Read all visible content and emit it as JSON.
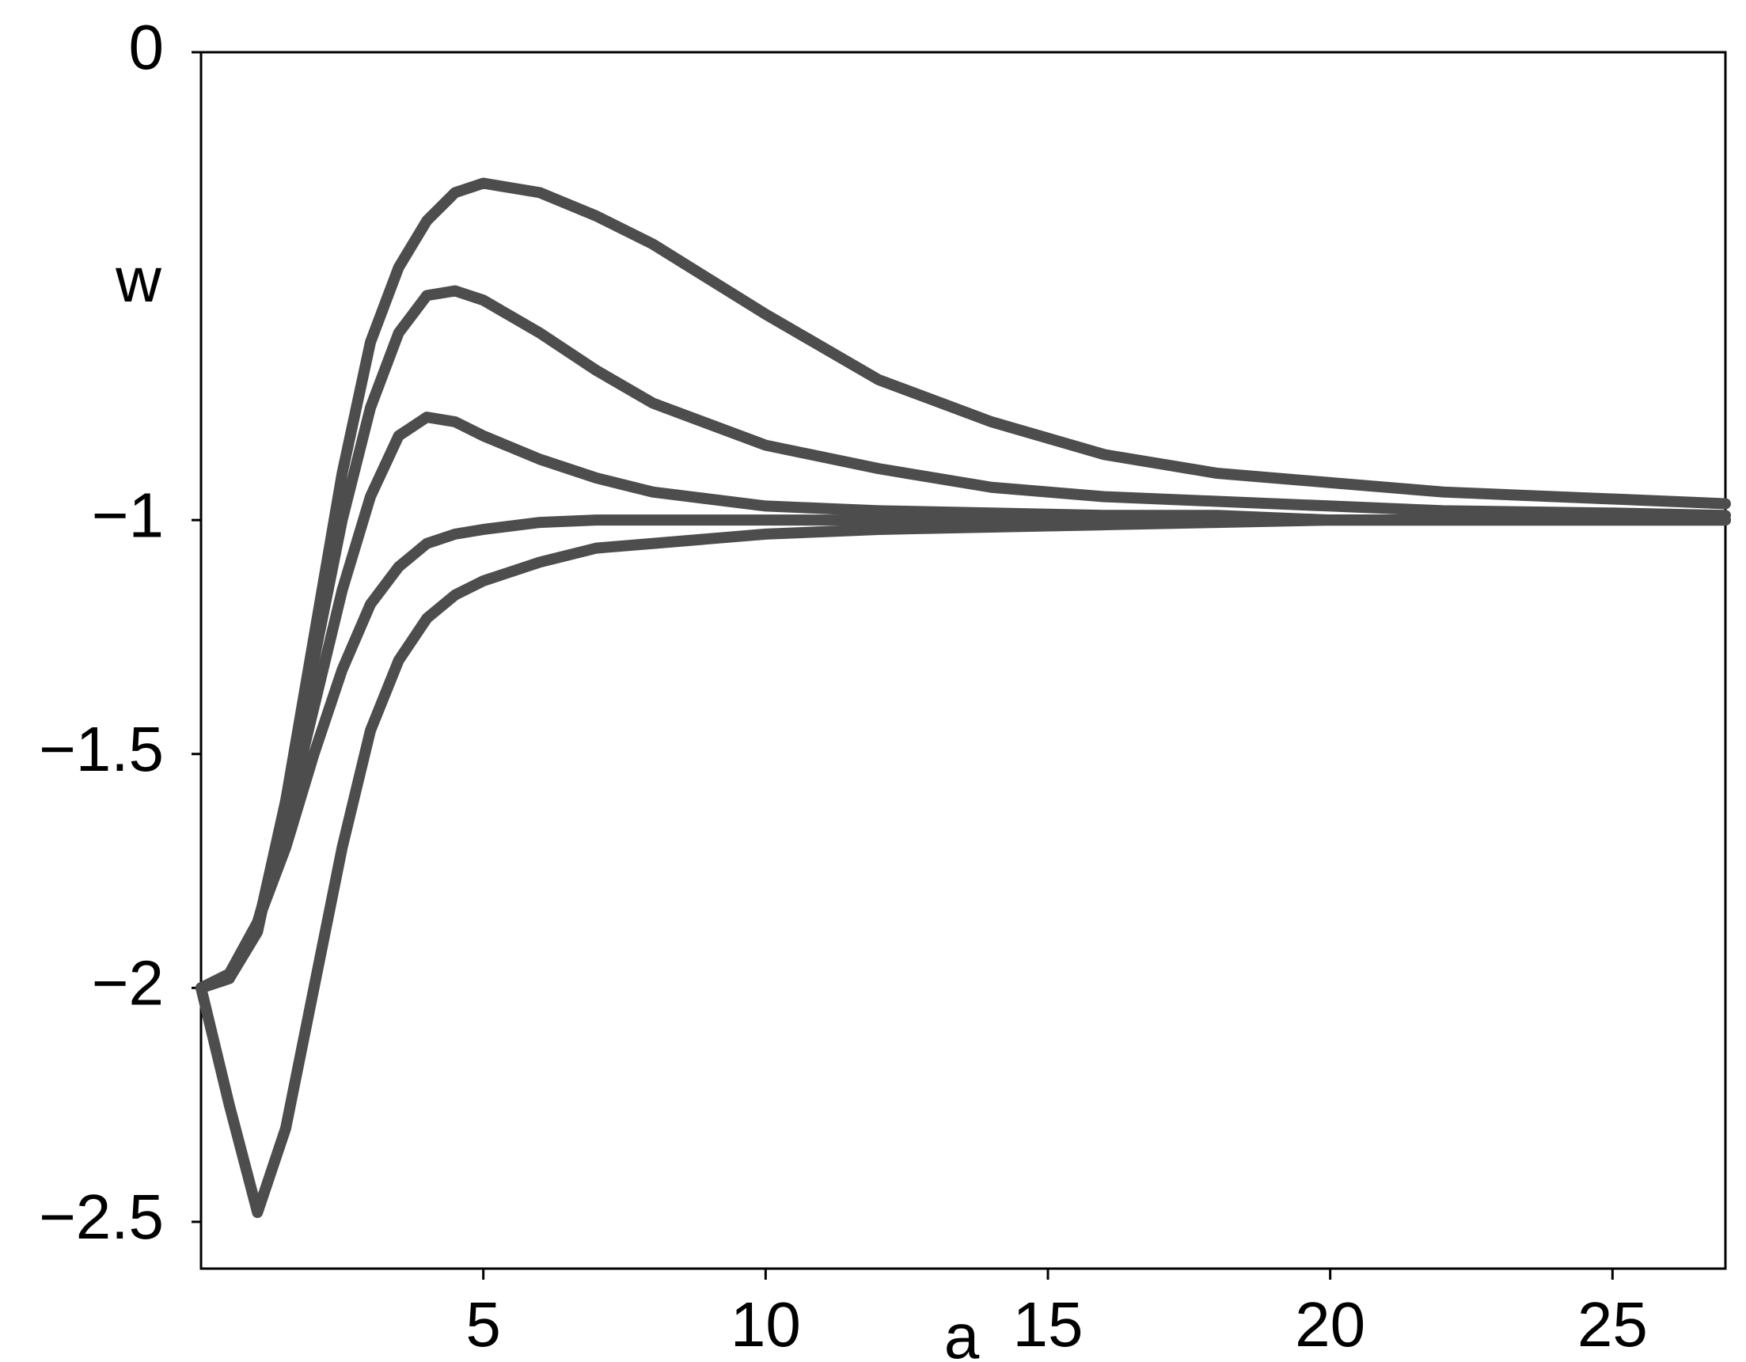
{
  "chart_data": {
    "type": "line",
    "x_label": "a",
    "y_label": "w",
    "x": [
      0,
      0.5,
      1,
      1.5,
      2,
      2.5,
      3,
      3.5,
      4,
      4.5,
      5,
      6,
      7,
      8,
      10,
      12,
      14,
      16,
      18,
      20,
      22,
      25,
      27
    ],
    "series": [
      {
        "color": "#4d4d4d",
        "values": [
          -2,
          -1.98,
          -1.88,
          -1.6,
          -1.25,
          -0.9,
          -0.62,
          -0.46,
          -0.36,
          -0.3,
          -0.28,
          -0.3,
          -0.35,
          -0.41,
          -0.56,
          -0.7,
          -0.79,
          -0.86,
          -0.9,
          -0.92,
          -0.94,
          -0.955,
          -0.965
        ]
      },
      {
        "color": "#4d4d4d",
        "values": [
          -2,
          -1.98,
          -1.87,
          -1.6,
          -1.3,
          -1.0,
          -0.76,
          -0.6,
          -0.52,
          -0.51,
          -0.53,
          -0.6,
          -0.68,
          -0.75,
          -0.84,
          -0.89,
          -0.93,
          -0.95,
          -0.96,
          -0.97,
          -0.98,
          -0.985,
          -0.99
        ]
      },
      {
        "color": "#4d4d4d",
        "values": [
          -2,
          -1.97,
          -1.86,
          -1.65,
          -1.4,
          -1.15,
          -0.95,
          -0.82,
          -0.78,
          -0.79,
          -0.82,
          -0.87,
          -0.91,
          -0.94,
          -0.97,
          -0.98,
          -0.985,
          -0.99,
          -0.99,
          -1.0,
          -1.0,
          -1.0,
          -1.0
        ]
      },
      {
        "color": "#4d4d4d",
        "values": [
          -2,
          -1.97,
          -1.86,
          -1.7,
          -1.5,
          -1.32,
          -1.18,
          -1.1,
          -1.05,
          -1.03,
          -1.02,
          -1.005,
          -1.0,
          -1.0,
          -1.0,
          -1.0,
          -1.0,
          -1.0,
          -1.0,
          -1.0,
          -1.0,
          -1.0,
          -1.0
        ]
      },
      {
        "color": "#4d4d4d",
        "values": [
          -2,
          -2.25,
          -2.48,
          -2.3,
          -2.0,
          -1.7,
          -1.45,
          -1.3,
          -1.21,
          -1.16,
          -1.13,
          -1.09,
          -1.06,
          -1.05,
          -1.03,
          -1.02,
          -1.015,
          -1.01,
          -1.005,
          -1.0,
          -1.0,
          -1.0,
          -1.0
        ]
      }
    ],
    "xlim": [
      0,
      27
    ],
    "ylim": [
      -2.6,
      0
    ],
    "xticks": [
      5,
      10,
      15,
      20,
      25
    ],
    "yticks": [
      0,
      {
        "value": -1,
        "label": "−1"
      },
      {
        "value": -1.5,
        "label": "−1.5"
      },
      {
        "value": -2,
        "label": "−2"
      },
      {
        "value": -2.5,
        "label": "−2.5"
      }
    ]
  }
}
